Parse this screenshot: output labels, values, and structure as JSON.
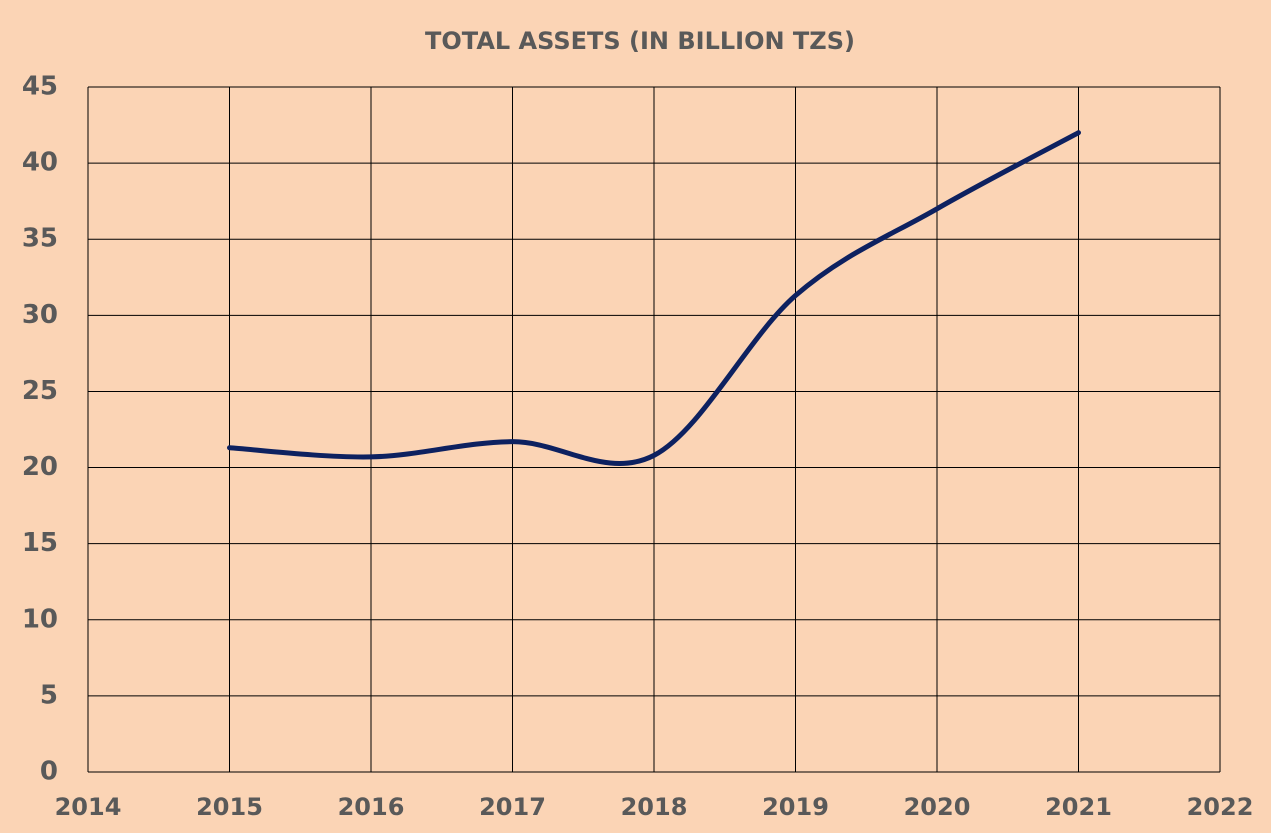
{
  "chart_data": {
    "type": "line",
    "title": "TOTAL ASSETS (IN BILLION TZS)",
    "x": [
      2015,
      2016,
      2017,
      2018,
      2019,
      2020,
      2021
    ],
    "values": [
      21.3,
      20.7,
      21.7,
      20.8,
      31.3,
      37,
      42
    ],
    "color": "#0d2160",
    "smooth": true,
    "xlim": [
      2014,
      2022
    ],
    "xticks": [
      2014,
      2015,
      2016,
      2017,
      2018,
      2019,
      2020,
      2021,
      2022
    ],
    "ylim": [
      0,
      45
    ],
    "yticks": [
      0,
      5,
      10,
      15,
      20,
      25,
      30,
      35,
      40,
      45
    ],
    "grid": true
  }
}
